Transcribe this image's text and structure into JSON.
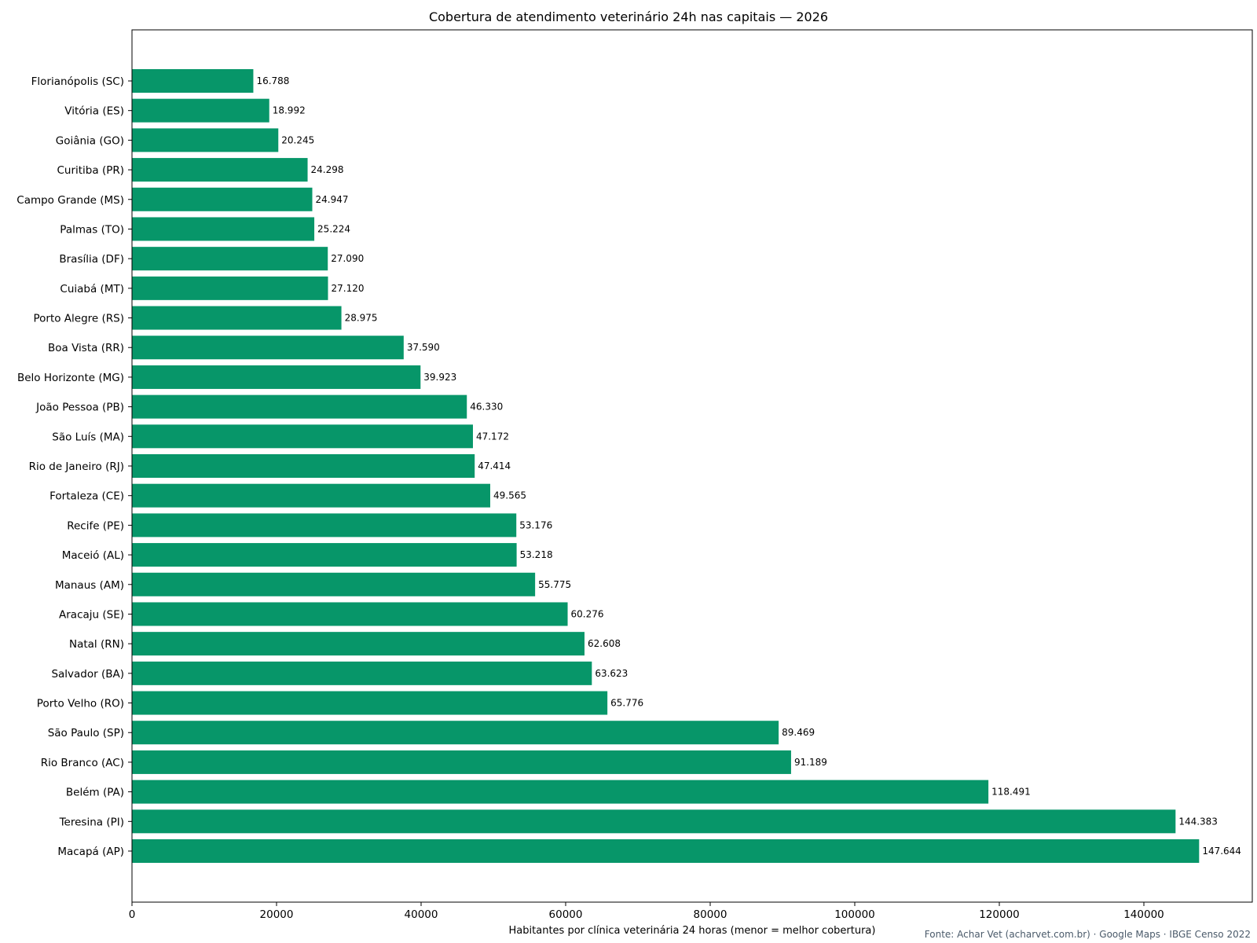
{
  "chart_data": {
    "type": "bar",
    "orientation": "horizontal",
    "title": "Cobertura de atendimento veterinário 24h nas capitais — 2026",
    "xlabel": "Habitantes por clínica veterinária 24 horas (menor = melhor cobertura)",
    "ylabel": "",
    "source": "Fonte: Achar Vet (acharvet.com.br) · Google Maps · IBGE Censo 2022",
    "xlim": [
      0,
      155000
    ],
    "xticks": [
      0,
      20000,
      40000,
      60000,
      80000,
      100000,
      120000,
      140000
    ],
    "xtick_labels": [
      "0",
      "20000",
      "40000",
      "60000",
      "80000",
      "100000",
      "120000",
      "140000"
    ],
    "grid": false,
    "bar_color": "#079669",
    "categories": [
      "Florianópolis (SC)",
      "Vitória (ES)",
      "Goiânia (GO)",
      "Curitiba (PR)",
      "Campo Grande (MS)",
      "Palmas (TO)",
      "Brasília (DF)",
      "Cuiabá (MT)",
      "Porto Alegre (RS)",
      "Boa Vista (RR)",
      "Belo Horizonte (MG)",
      "João Pessoa (PB)",
      "São Luís (MA)",
      "Rio de Janeiro (RJ)",
      "Fortaleza (CE)",
      "Recife (PE)",
      "Maceió (AL)",
      "Manaus (AM)",
      "Aracaju (SE)",
      "Natal (RN)",
      "Salvador (BA)",
      "Porto Velho (RO)",
      "São Paulo (SP)",
      "Rio Branco (AC)",
      "Belém (PA)",
      "Teresina (PI)",
      "Macapá (AP)"
    ],
    "values": [
      16788,
      18992,
      20245,
      24298,
      24947,
      25224,
      27090,
      27120,
      28975,
      37590,
      39923,
      46330,
      47172,
      47414,
      49565,
      53176,
      53218,
      55775,
      60276,
      62608,
      63623,
      65776,
      89469,
      91189,
      118491,
      144383,
      147644
    ],
    "value_labels": [
      "16.788",
      "18.992",
      "20.245",
      "24.298",
      "24.947",
      "25.224",
      "27.090",
      "27.120",
      "28.975",
      "37.590",
      "39.923",
      "46.330",
      "47.172",
      "47.414",
      "49.565",
      "53.176",
      "53.218",
      "55.775",
      "60.276",
      "62.608",
      "63.623",
      "65.776",
      "89.469",
      "91.189",
      "118.491",
      "144.383",
      "147.644"
    ]
  }
}
